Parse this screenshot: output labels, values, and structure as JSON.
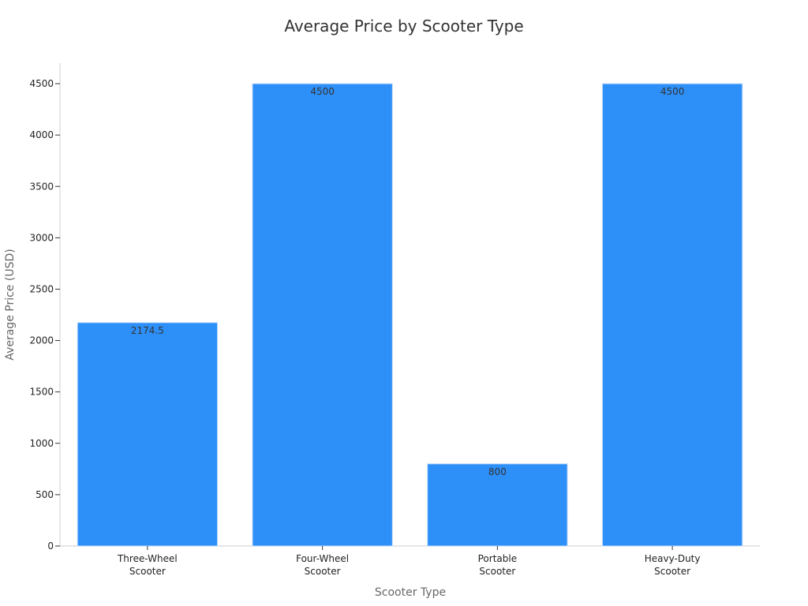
{
  "chart_data": {
    "type": "bar",
    "title": "Average Price by Scooter Type",
    "xlabel": "Scooter Type",
    "ylabel": "Average Price (USD)",
    "categories": [
      [
        "Three-Wheel",
        "Scooter"
      ],
      [
        "Four-Wheel",
        "Scooter"
      ],
      [
        "Portable",
        "Scooter"
      ],
      [
        "Heavy-Duty",
        "Scooter"
      ]
    ],
    "values": [
      2174.5,
      4500,
      800,
      4500
    ],
    "data_labels": [
      "2174.5",
      "4500",
      "800",
      "4500"
    ],
    "ylim": [
      0,
      4700
    ],
    "yticks": [
      0,
      500,
      1000,
      1500,
      2000,
      2500,
      3000,
      3500,
      4000,
      4500
    ],
    "grid": false,
    "legend": "none",
    "colors": {
      "bar": "#2d8ff8",
      "bar_edge": "#c9dff7",
      "axis": "#cccccc"
    }
  }
}
